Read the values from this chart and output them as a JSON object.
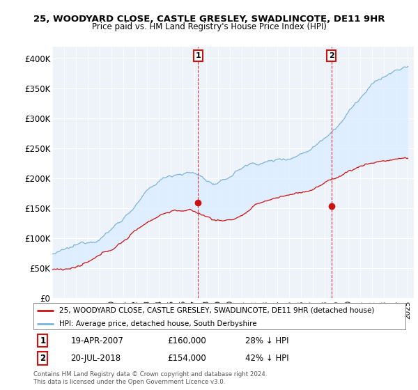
{
  "title": "25, WOODYARD CLOSE, CASTLE GRESLEY, SWADLINCOTE, DE11 9HR",
  "subtitle": "Price paid vs. HM Land Registry's House Price Index (HPI)",
  "hpi_color": "#7ab4d8",
  "hpi_fill_color": "#ddeeff",
  "price_color": "#cc1111",
  "background_color": "#ffffff",
  "plot_bg_color": "#eef3fa",
  "ylim": [
    0,
    420000
  ],
  "yticks": [
    0,
    50000,
    100000,
    150000,
    200000,
    250000,
    300000,
    350000,
    400000
  ],
  "ytick_labels": [
    "£0",
    "£50K",
    "£100K",
    "£150K",
    "£200K",
    "£250K",
    "£300K",
    "£350K",
    "£400K"
  ],
  "sale1": {
    "date_label": "19-APR-2007",
    "price": 160000,
    "pct": "28%",
    "direction": "↓",
    "marker_x": 2007.3,
    "marker_y": 160000,
    "label_num": "1"
  },
  "sale2": {
    "date_label": "20-JUL-2018",
    "price": 154000,
    "pct": "42%",
    "direction": "↓",
    "marker_x": 2018.55,
    "marker_y": 154000,
    "label_num": "2"
  },
  "legend_property": "25, WOODYARD CLOSE, CASTLE GRESLEY, SWADLINCOTE, DE11 9HR (detached house)",
  "legend_hpi": "HPI: Average price, detached house, South Derbyshire",
  "footer": "Contains HM Land Registry data © Crown copyright and database right 2024.\nThis data is licensed under the Open Government Licence v3.0.",
  "xmin": 1995.0,
  "xmax": 2025.5
}
